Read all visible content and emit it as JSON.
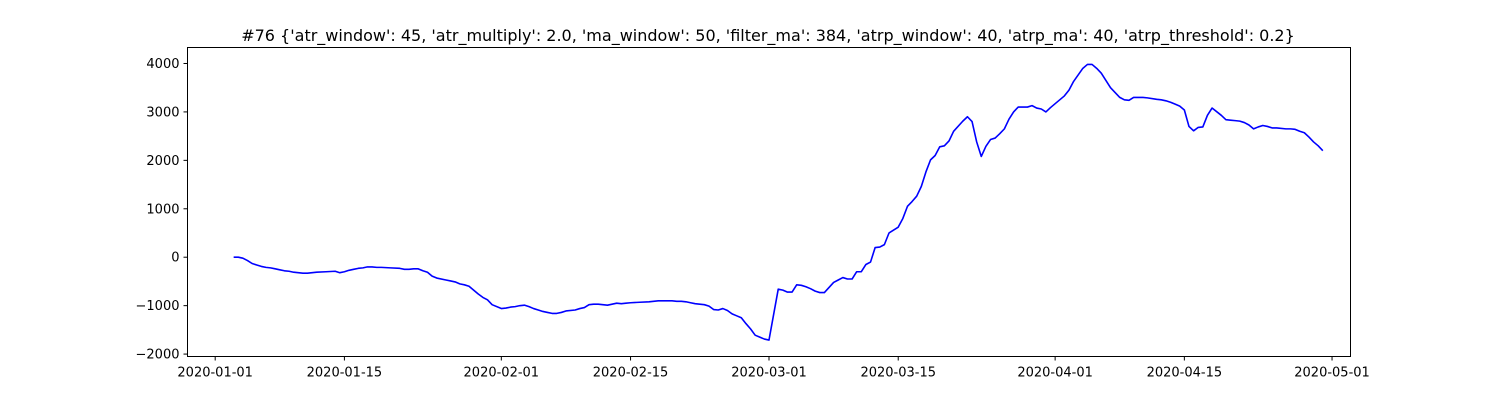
{
  "chart_data": {
    "type": "line",
    "title": "#76 {'atr_window': 45, 'atr_multiply': 2.0, 'ma_window': 50, 'filter_ma': 384, 'atrp_window': 40, 'atrp_ma': 40, 'atrp_threshold': 0.2}",
    "xlabel": "",
    "ylabel": "",
    "x_axis_type": "date",
    "xlim": [
      "2019-12-29",
      "2020-05-03"
    ],
    "ylim": [
      -2050,
      4330
    ],
    "x_ticks": [
      "2020-01-01",
      "2020-01-15",
      "2020-02-01",
      "2020-02-15",
      "2020-03-01",
      "2020-03-15",
      "2020-04-01",
      "2020-04-15",
      "2020-05-01"
    ],
    "y_ticks": [
      -2000,
      -1000,
      0,
      1000,
      2000,
      3000,
      4000
    ],
    "grid": false,
    "legend": null,
    "color": "#0000ff",
    "series": [
      {
        "x": [
          "2020-01-03",
          "2020-01-03",
          "2020-01-04",
          "2020-01-04",
          "2020-01-05",
          "2020-01-05",
          "2020-01-06",
          "2020-01-06",
          "2020-01-07",
          "2020-01-07",
          "2020-01-08",
          "2020-01-08",
          "2020-01-09",
          "2020-01-09",
          "2020-01-10",
          "2020-01-10",
          "2020-01-11",
          "2020-01-11",
          "2020-01-12",
          "2020-01-13",
          "2020-01-14",
          "2020-01-14",
          "2020-01-15",
          "2020-01-15",
          "2020-01-16",
          "2020-01-16",
          "2020-01-17",
          "2020-01-17",
          "2020-01-18",
          "2020-01-18",
          "2020-01-19",
          "2020-01-20",
          "2020-01-21",
          "2020-01-21",
          "2020-01-22",
          "2020-01-22",
          "2020-01-23",
          "2020-01-23",
          "2020-01-24",
          "2020-01-24",
          "2020-01-25",
          "2020-01-26",
          "2020-01-26",
          "2020-01-27",
          "2020-01-27",
          "2020-01-28",
          "2020-01-28",
          "2020-01-29",
          "2020-01-29",
          "2020-01-30",
          "2020-01-30",
          "2020-01-31",
          "2020-02-01",
          "2020-02-01",
          "2020-02-02",
          "2020-02-02",
          "2020-02-03",
          "2020-02-03",
          "2020-02-04",
          "2020-02-04",
          "2020-02-05",
          "2020-02-05",
          "2020-02-06",
          "2020-02-06",
          "2020-02-07",
          "2020-02-07",
          "2020-02-08",
          "2020-02-09",
          "2020-02-09",
          "2020-02-10",
          "2020-02-10",
          "2020-02-11",
          "2020-02-11",
          "2020-02-12",
          "2020-02-12",
          "2020-02-13",
          "2020-02-13",
          "2020-02-14",
          "2020-02-14",
          "2020-02-15",
          "2020-02-16",
          "2020-02-17",
          "2020-02-17",
          "2020-02-18",
          "2020-02-18",
          "2020-02-19",
          "2020-02-19",
          "2020-02-20",
          "2020-02-20",
          "2020-02-21",
          "2020-02-21",
          "2020-02-22",
          "2020-02-23",
          "2020-02-23",
          "2020-02-24",
          "2020-02-24",
          "2020-02-25",
          "2020-02-25",
          "2020-02-26",
          "2020-02-26",
          "2020-02-27",
          "2020-02-27",
          "2020-02-28",
          "2020-02-28",
          "2020-02-29",
          "2020-02-29",
          "2020-03-01",
          "2020-03-02",
          "2020-03-02",
          "2020-03-03",
          "2020-03-03",
          "2020-03-04",
          "2020-03-04",
          "2020-03-05",
          "2020-03-05",
          "2020-03-06",
          "2020-03-06",
          "2020-03-07",
          "2020-03-08",
          "2020-03-08",
          "2020-03-09",
          "2020-03-09",
          "2020-03-10",
          "2020-03-10",
          "2020-03-11",
          "2020-03-11",
          "2020-03-12",
          "2020-03-12",
          "2020-03-13",
          "2020-03-13",
          "2020-03-14",
          "2020-03-15",
          "2020-03-15",
          "2020-03-16",
          "2020-03-16",
          "2020-03-17",
          "2020-03-17",
          "2020-03-18",
          "2020-03-18",
          "2020-03-19",
          "2020-03-19",
          "2020-03-20",
          "2020-03-20",
          "2020-03-21",
          "2020-03-22",
          "2020-03-22",
          "2020-03-23",
          "2020-03-23",
          "2020-03-24",
          "2020-03-24",
          "2020-03-25",
          "2020-03-25",
          "2020-03-26",
          "2020-03-26",
          "2020-03-27",
          "2020-03-27",
          "2020-03-28",
          "2020-03-29",
          "2020-03-29",
          "2020-03-30",
          "2020-03-30",
          "2020-03-31",
          "2020-03-31",
          "2020-04-01",
          "2020-04-01",
          "2020-04-02",
          "2020-04-02",
          "2020-04-03",
          "2020-04-04",
          "2020-04-04",
          "2020-04-05",
          "2020-04-05",
          "2020-04-06",
          "2020-04-06",
          "2020-04-07",
          "2020-04-07",
          "2020-04-08",
          "2020-04-08",
          "2020-04-09",
          "2020-04-09",
          "2020-04-10",
          "2020-04-10",
          "2020-04-11",
          "2020-04-12",
          "2020-04-12",
          "2020-04-13",
          "2020-04-13",
          "2020-04-14",
          "2020-04-14",
          "2020-04-15",
          "2020-04-15",
          "2020-04-16",
          "2020-04-16",
          "2020-04-17",
          "2020-04-17",
          "2020-04-18",
          "2020-04-19",
          "2020-04-19",
          "2020-04-20",
          "2020-04-20",
          "2020-04-21",
          "2020-04-21",
          "2020-04-22",
          "2020-04-22",
          "2020-04-23",
          "2020-04-23",
          "2020-04-24",
          "2020-04-24",
          "2020-04-25",
          "2020-04-26",
          "2020-04-26",
          "2020-04-27",
          "2020-04-27",
          "2020-04-28",
          "2020-04-28",
          "2020-04-29",
          "2020-04-29",
          "2020-04-30"
        ],
        "values": [
          0,
          0,
          -20,
          -70,
          -130,
          -160,
          -190,
          -210,
          -220,
          -240,
          -260,
          -280,
          -290,
          -310,
          -320,
          -330,
          -330,
          -320,
          -310,
          -300,
          -290,
          -320,
          -300,
          -270,
          -250,
          -230,
          -220,
          -200,
          -200,
          -210,
          -210,
          -220,
          -230,
          -250,
          -250,
          -240,
          -240,
          -280,
          -310,
          -390,
          -430,
          -470,
          -490,
          -510,
          -550,
          -570,
          -600,
          -680,
          -760,
          -830,
          -880,
          -980,
          -1060,
          -1050,
          -1030,
          -1020,
          -1000,
          -990,
          -1020,
          -1060,
          -1090,
          -1120,
          -1140,
          -1160,
          -1160,
          -1140,
          -1110,
          -1090,
          -1060,
          -1040,
          -980,
          -970,
          -970,
          -980,
          -990,
          -970,
          -950,
          -960,
          -950,
          -940,
          -930,
          -920,
          -910,
          -900,
          -900,
          -900,
          -900,
          -910,
          -910,
          -920,
          -940,
          -960,
          -980,
          -1010,
          -1080,
          -1090,
          -1060,
          -1100,
          -1170,
          -1210,
          -1250,
          -1370,
          -1480,
          -1610,
          -1650,
          -1690,
          -1710,
          -660,
          -680,
          -720,
          -720,
          -570,
          -580,
          -610,
          -650,
          -700,
          -730,
          -730,
          -520,
          -470,
          -420,
          -450,
          -450,
          -300,
          -300,
          -150,
          -100,
          200,
          210,
          260,
          500,
          620,
          800,
          1050,
          1150,
          1260,
          1460,
          1760,
          2010,
          2100,
          2280,
          2300,
          2400,
          2600,
          2810,
          2900,
          2800,
          2380,
          2080,
          2290,
          2430,
          2460,
          2550,
          2650,
          2850,
          3000,
          3100,
          3100,
          3130,
          3080,
          3060,
          3000,
          3090,
          3170,
          3250,
          3330,
          3450,
          3630,
          3900,
          3980,
          3980,
          3900,
          3800,
          3650,
          3500,
          3400,
          3300,
          3250,
          3240,
          3300,
          3300,
          3300,
          3290,
          3260,
          3250,
          3230,
          3200,
          3160,
          3120,
          3040,
          2700,
          2610,
          2680,
          2690,
          2930,
          3080,
          2930,
          2840,
          2830,
          2820,
          2810,
          2780,
          2730,
          2650,
          2690,
          2720,
          2700,
          2670,
          2670,
          2650,
          2650,
          2640,
          2600,
          2570,
          2480,
          2380,
          2300,
          2200
        ]
      }
    ]
  }
}
